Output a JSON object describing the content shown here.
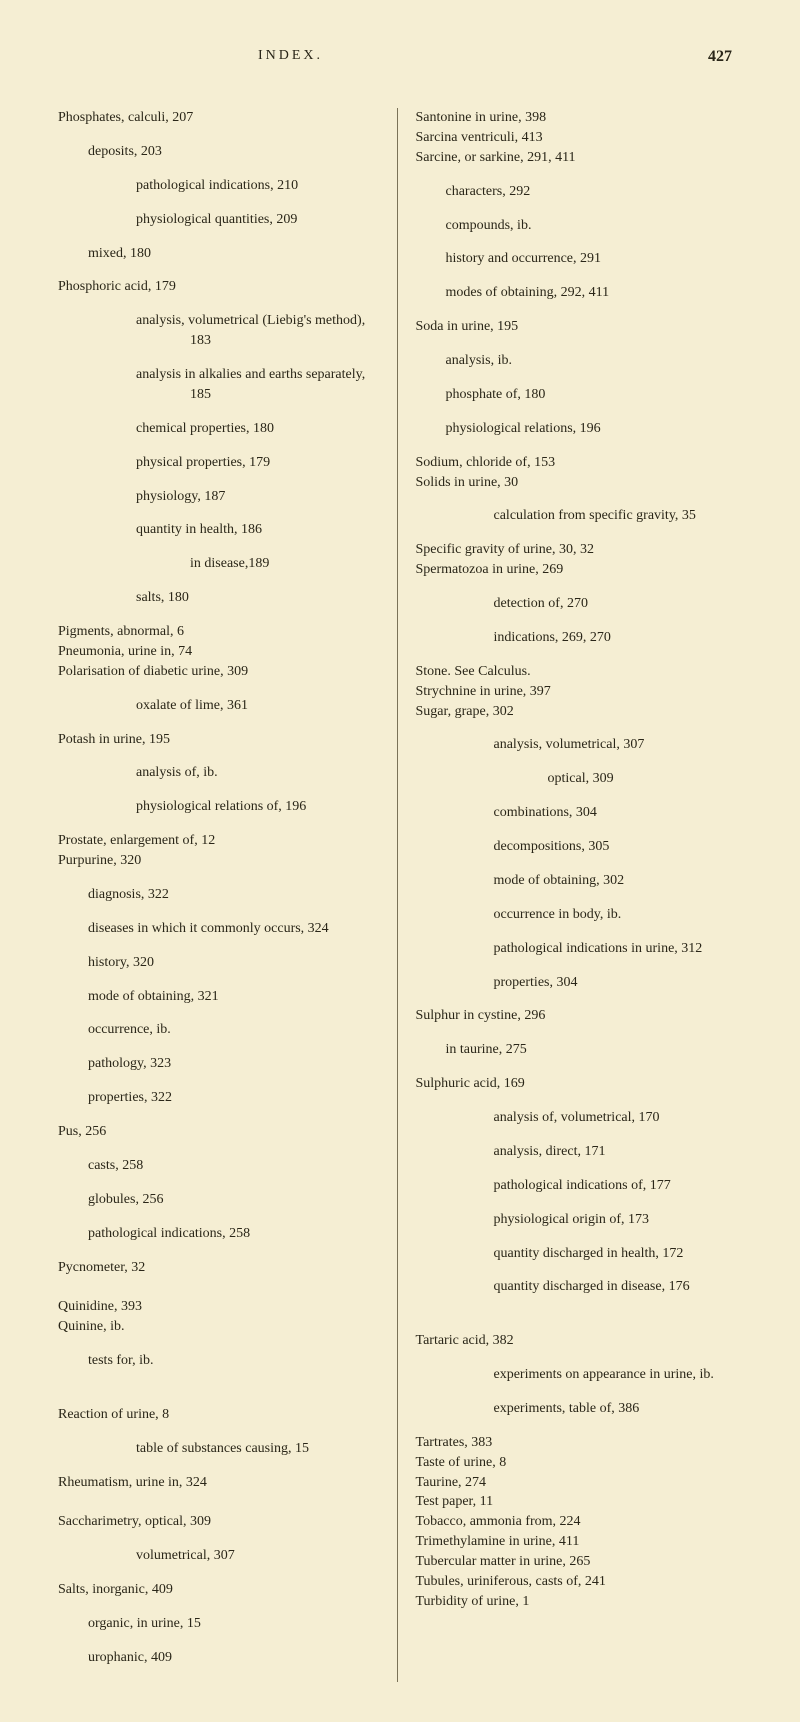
{
  "header": {
    "title": "INDEX.",
    "page": "427"
  },
  "left_column": [
    {
      "t": "Phosphates, calculi, 207",
      "cls": "entry"
    },
    {
      "t": "deposits, 203",
      "cls": "sub1"
    },
    {
      "t": "pathological indications, 210",
      "cls": "sub2"
    },
    {
      "t": "physiological quantities, 209",
      "cls": "sub2"
    },
    {
      "t": "mixed, 180",
      "cls": "sub1"
    },
    {
      "t": "Phosphoric acid, 179",
      "cls": "entry"
    },
    {
      "t": "analysis, volumetrical (Liebig's method), 183",
      "cls": "sub2"
    },
    {
      "t": "analysis in alkalies and earths separately, 185",
      "cls": "sub2"
    },
    {
      "t": "chemical properties, 180",
      "cls": "sub2"
    },
    {
      "t": "physical properties, 179",
      "cls": "sub2"
    },
    {
      "t": "physiology, 187",
      "cls": "sub2"
    },
    {
      "t": "quantity in health, 186",
      "cls": "sub2"
    },
    {
      "t": "in disease,189",
      "cls": "sub3"
    },
    {
      "t": "salts, 180",
      "cls": "sub2"
    },
    {
      "t": "Pigments, abnormal, 6",
      "cls": "entry"
    },
    {
      "t": "Pneumonia, urine in, 74",
      "cls": "entry"
    },
    {
      "t": "Polarisation of diabetic urine, 309",
      "cls": "entry"
    },
    {
      "t": "oxalate of lime, 361",
      "cls": "sub2"
    },
    {
      "t": "Potash in urine, 195",
      "cls": "entry"
    },
    {
      "t": "analysis of, ib.",
      "cls": "sub2"
    },
    {
      "t": "physiological relations of, 196",
      "cls": "sub2"
    },
    {
      "t": "Prostate, enlargement of, 12",
      "cls": "entry"
    },
    {
      "t": "Purpurine, 320",
      "cls": "entry"
    },
    {
      "t": "diagnosis, 322",
      "cls": "sub1"
    },
    {
      "t": "diseases in which it commonly occurs, 324",
      "cls": "sub1"
    },
    {
      "t": "history, 320",
      "cls": "sub1"
    },
    {
      "t": "mode of obtaining, 321",
      "cls": "sub1"
    },
    {
      "t": "occurrence, ib.",
      "cls": "sub1"
    },
    {
      "t": "pathology, 323",
      "cls": "sub1"
    },
    {
      "t": "properties, 322",
      "cls": "sub1"
    },
    {
      "t": "Pus, 256",
      "cls": "entry"
    },
    {
      "t": "casts, 258",
      "cls": "sub1"
    },
    {
      "t": "globules, 256",
      "cls": "sub1"
    },
    {
      "t": "pathological indications, 258",
      "cls": "sub1"
    },
    {
      "t": "Pycnometer, 32",
      "cls": "entry"
    },
    {
      "t": " ",
      "cls": "entry"
    },
    {
      "t": "Quinidine, 393",
      "cls": "entry"
    },
    {
      "t": "Quinine, ib.",
      "cls": "entry"
    },
    {
      "t": "tests for, ib.",
      "cls": "sub1"
    },
    {
      "t": " ",
      "cls": "entry"
    },
    {
      "t": "Reaction of urine, 8",
      "cls": "entry"
    },
    {
      "t": "table of substances causing, 15",
      "cls": "sub2"
    },
    {
      "t": "Rheumatism, urine in, 324",
      "cls": "entry"
    },
    {
      "t": " ",
      "cls": "entry"
    },
    {
      "t": "Saccharimetry, optical, 309",
      "cls": "entry"
    },
    {
      "t": "volumetrical, 307",
      "cls": "sub2"
    },
    {
      "t": "Salts, inorganic, 409",
      "cls": "entry"
    },
    {
      "t": "organic, in urine, 15",
      "cls": "sub1"
    },
    {
      "t": "urophanic, 409",
      "cls": "sub1"
    }
  ],
  "right_column": [
    {
      "t": "Santonine in urine, 398",
      "cls": "entry"
    },
    {
      "t": "Sarcina ventriculi, 413",
      "cls": "entry"
    },
    {
      "t": "Sarcine, or sarkine, 291, 411",
      "cls": "entry"
    },
    {
      "t": "characters, 292",
      "cls": "sub1"
    },
    {
      "t": "compounds, ib.",
      "cls": "sub1"
    },
    {
      "t": "history and occurrence, 291",
      "cls": "sub1"
    },
    {
      "t": "modes of obtaining, 292, 411",
      "cls": "sub1"
    },
    {
      "t": "Soda in urine, 195",
      "cls": "entry"
    },
    {
      "t": "analysis, ib.",
      "cls": "sub1"
    },
    {
      "t": "phosphate of, 180",
      "cls": "sub1"
    },
    {
      "t": "physiological relations, 196",
      "cls": "sub1"
    },
    {
      "t": "Sodium, chloride of, 153",
      "cls": "entry"
    },
    {
      "t": "Solids in urine, 30",
      "cls": "entry"
    },
    {
      "t": "calculation from specific gravity, 35",
      "cls": "sub2"
    },
    {
      "t": "Specific gravity of urine, 30, 32",
      "cls": "entry"
    },
    {
      "t": "Spermatozoa in urine, 269",
      "cls": "entry"
    },
    {
      "t": "detection of, 270",
      "cls": "sub2"
    },
    {
      "t": "indications, 269, 270",
      "cls": "sub2"
    },
    {
      "t": "Stone. See Calculus.",
      "cls": "entry"
    },
    {
      "t": "Strychnine in urine, 397",
      "cls": "entry"
    },
    {
      "t": "Sugar, grape, 302",
      "cls": "entry"
    },
    {
      "t": "analysis, volumetrical, 307",
      "cls": "sub2"
    },
    {
      "t": "optical, 309",
      "cls": "sub3"
    },
    {
      "t": "combinations, 304",
      "cls": "sub2"
    },
    {
      "t": "decompositions, 305",
      "cls": "sub2"
    },
    {
      "t": "mode of obtaining, 302",
      "cls": "sub2"
    },
    {
      "t": "occurrence in body, ib.",
      "cls": "sub2"
    },
    {
      "t": "pathological indications in urine, 312",
      "cls": "sub2"
    },
    {
      "t": "properties, 304",
      "cls": "sub2"
    },
    {
      "t": "Sulphur in cystine, 296",
      "cls": "entry"
    },
    {
      "t": "in taurine, 275",
      "cls": "sub1"
    },
    {
      "t": "Sulphuric acid, 169",
      "cls": "entry"
    },
    {
      "t": "analysis of, volumetrical, 170",
      "cls": "sub2"
    },
    {
      "t": "analysis, direct, 171",
      "cls": "sub2"
    },
    {
      "t": "pathological indications of, 177",
      "cls": "sub2"
    },
    {
      "t": "physiological origin of, 173",
      "cls": "sub2"
    },
    {
      "t": "quantity discharged in health, 172",
      "cls": "sub2"
    },
    {
      "t": "quantity discharged in disease, 176",
      "cls": "sub2"
    },
    {
      "t": " ",
      "cls": "entry"
    },
    {
      "t": "Tartaric acid, 382",
      "cls": "entry"
    },
    {
      "t": "experiments on appearance in urine, ib.",
      "cls": "sub2"
    },
    {
      "t": "experiments, table of, 386",
      "cls": "sub2"
    },
    {
      "t": "Tartrates, 383",
      "cls": "entry"
    },
    {
      "t": "Taste of urine, 8",
      "cls": "entry"
    },
    {
      "t": "Taurine, 274",
      "cls": "entry"
    },
    {
      "t": "Test paper, 11",
      "cls": "entry"
    },
    {
      "t": "Tobacco, ammonia from, 224",
      "cls": "entry"
    },
    {
      "t": "Trimethylamine in urine, 411",
      "cls": "entry"
    },
    {
      "t": "Tubercular matter in urine, 265",
      "cls": "entry"
    },
    {
      "t": "Tubules, uriniferous, casts of, 241",
      "cls": "entry"
    },
    {
      "t": "Turbidity of urine, 1",
      "cls": "entry"
    }
  ]
}
